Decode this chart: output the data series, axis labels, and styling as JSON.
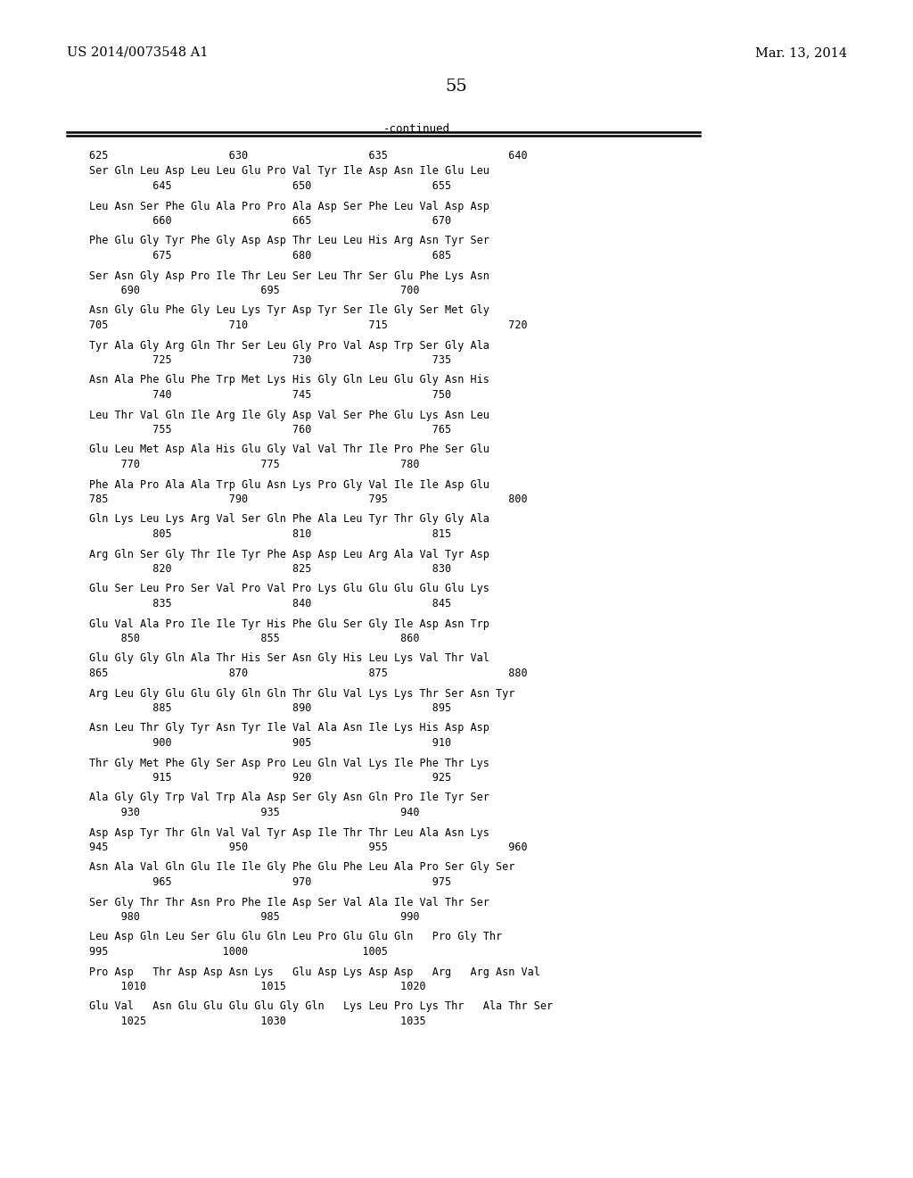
{
  "header_left": "US 2014/0073548 A1",
  "header_right": "Mar. 13, 2014",
  "page_number": "55",
  "continued_label": "-continued",
  "background_color": "#ffffff",
  "text_color": "#000000",
  "groups": [
    {
      "top_nums": "625                   630                   635                   640",
      "seq": "Ser Gln Leu Asp Leu Leu Glu Pro Val Tyr Ile Asp Asn Ile Glu Leu",
      "bot_nums": "          645                   650                   655"
    },
    {
      "top_nums": null,
      "seq": "Leu Asn Ser Phe Glu Ala Pro Pro Ala Asp Ser Phe Leu Val Asp Asp",
      "bot_nums": "          660                   665                   670"
    },
    {
      "top_nums": null,
      "seq": "Phe Glu Gly Tyr Phe Gly Asp Asp Thr Leu Leu His Arg Asn Tyr Ser",
      "bot_nums": "          675                   680                   685"
    },
    {
      "top_nums": null,
      "seq": "Ser Asn Gly Asp Pro Ile Thr Leu Ser Leu Thr Ser Glu Phe Lys Asn",
      "bot_nums": "     690                   695                   700"
    },
    {
      "top_nums": null,
      "seq": "Asn Gly Glu Phe Gly Leu Lys Tyr Asp Tyr Ser Ile Gly Ser Met Gly",
      "bot_nums": "705                   710                   715                   720"
    },
    {
      "top_nums": null,
      "seq": "Tyr Ala Gly Arg Gln Thr Ser Leu Gly Pro Val Asp Trp Ser Gly Ala",
      "bot_nums": "          725                   730                   735"
    },
    {
      "top_nums": null,
      "seq": "Asn Ala Phe Glu Phe Trp Met Lys His Gly Gln Leu Glu Gly Asn His",
      "bot_nums": "          740                   745                   750"
    },
    {
      "top_nums": null,
      "seq": "Leu Thr Val Gln Ile Arg Ile Gly Asp Val Ser Phe Glu Lys Asn Leu",
      "bot_nums": "          755                   760                   765"
    },
    {
      "top_nums": null,
      "seq": "Glu Leu Met Asp Ala His Glu Gly Val Val Thr Ile Pro Phe Ser Glu",
      "bot_nums": "     770                   775                   780"
    },
    {
      "top_nums": null,
      "seq": "Phe Ala Pro Ala Ala Trp Glu Asn Lys Pro Gly Val Ile Ile Asp Glu",
      "bot_nums": "785                   790                   795                   800"
    },
    {
      "top_nums": null,
      "seq": "Gln Lys Leu Lys Arg Val Ser Gln Phe Ala Leu Tyr Thr Gly Gly Ala",
      "bot_nums": "          805                   810                   815"
    },
    {
      "top_nums": null,
      "seq": "Arg Gln Ser Gly Thr Ile Tyr Phe Asp Asp Leu Arg Ala Val Tyr Asp",
      "bot_nums": "          820                   825                   830"
    },
    {
      "top_nums": null,
      "seq": "Glu Ser Leu Pro Ser Val Pro Val Pro Lys Glu Glu Glu Glu Glu Lys",
      "bot_nums": "          835                   840                   845"
    },
    {
      "top_nums": null,
      "seq": "Glu Val Ala Pro Ile Ile Tyr His Phe Glu Ser Gly Ile Asp Asn Trp",
      "bot_nums": "     850                   855                   860"
    },
    {
      "top_nums": null,
      "seq": "Glu Gly Gly Gln Ala Thr His Ser Asn Gly His Leu Lys Val Thr Val",
      "bot_nums": "865                   870                   875                   880"
    },
    {
      "top_nums": null,
      "seq": "Arg Leu Gly Glu Glu Gly Gln Gln Thr Glu Val Lys Lys Thr Ser Asn Tyr",
      "bot_nums": "          885                   890                   895"
    },
    {
      "top_nums": null,
      "seq": "Asn Leu Thr Gly Tyr Asn Tyr Ile Val Ala Asn Ile Lys His Asp Asp",
      "bot_nums": "          900                   905                   910"
    },
    {
      "top_nums": null,
      "seq": "Thr Gly Met Phe Gly Ser Asp Pro Leu Gln Val Lys Ile Phe Thr Lys",
      "bot_nums": "          915                   920                   925"
    },
    {
      "top_nums": null,
      "seq": "Ala Gly Gly Trp Val Trp Ala Asp Ser Gly Asn Gln Pro Ile Tyr Ser",
      "bot_nums": "     930                   935                   940"
    },
    {
      "top_nums": null,
      "seq": "Asp Asp Tyr Thr Gln Val Val Tyr Asp Ile Thr Thr Leu Ala Asn Lys",
      "bot_nums": "945                   950                   955                   960"
    },
    {
      "top_nums": null,
      "seq": "Asn Ala Val Gln Glu Ile Ile Gly Phe Glu Phe Leu Ala Pro Ser Gly Ser",
      "bot_nums": "          965                   970                   975"
    },
    {
      "top_nums": null,
      "seq": "Ser Gly Thr Thr Asn Pro Phe Ile Asp Ser Val Ala Ile Val Thr Ser",
      "bot_nums": "     980                   985                   990"
    },
    {
      "top_nums": null,
      "seq": "Leu Asp Gln Leu Ser Glu Glu Gln Leu Pro Glu Glu Gln   Pro Gly Thr",
      "bot_nums": "995                  1000                  1005"
    },
    {
      "top_nums": null,
      "seq": "Pro Asp   Thr Asp Asp Asn Lys   Glu Asp Lys Asp Asp   Arg   Arg Asn Val",
      "bot_nums": "     1010                  1015                  1020"
    },
    {
      "top_nums": null,
      "seq": "Glu Val   Asn Glu Glu Glu Glu Gly Gln   Lys Leu Pro Lys Thr   Ala Thr Ser",
      "bot_nums": "     1025                  1030                  1035"
    }
  ]
}
